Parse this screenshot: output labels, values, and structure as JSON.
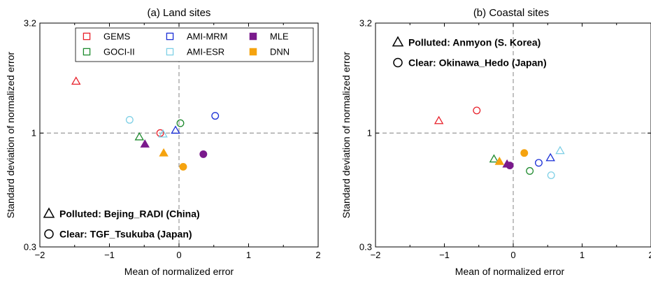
{
  "chart_data": [
    {
      "type": "scatter",
      "title": "(a) Land sites",
      "xlabel": "Mean of normalized error",
      "ylabel": "Standard deviation of normalized error",
      "xlim": [
        -2,
        2
      ],
      "ylim": [
        0.3,
        3.2
      ],
      "yscale": "log",
      "xticks": [
        -2,
        -1,
        0,
        1,
        2
      ],
      "xtick_labels": [
        "−2",
        "−1",
        "0",
        "1",
        "2"
      ],
      "yticks": [
        0.3,
        1,
        3.2
      ],
      "ytick_labels": [
        "0.3",
        "1",
        "3.2"
      ],
      "reference_lines": {
        "x": 0,
        "y": 1,
        "style": "dashed"
      },
      "legend": {
        "placement": "top",
        "entries": [
          {
            "name": "GEMS",
            "color": "#e8202a",
            "marker": "open-square"
          },
          {
            "name": "GOCI-II",
            "color": "#1e8a2e",
            "marker": "open-square"
          },
          {
            "name": "AMI-MRM",
            "color": "#1a2fd6",
            "marker": "open-square"
          },
          {
            "name": "AMI-ESR",
            "color": "#7fd0e6",
            "marker": "open-square"
          },
          {
            "name": "MLE",
            "color": "#7a1a8c",
            "marker": "filled-square"
          },
          {
            "name": "DNN",
            "color": "#f5a30f",
            "marker": "filled-square"
          }
        ]
      },
      "site_annotations": [
        {
          "marker": "triangle",
          "text": "Polluted: Bejing_RADI (China)"
        },
        {
          "marker": "circle",
          "text": "Clear: TGF_Tsukuba (Japan)"
        }
      ],
      "series": [
        {
          "name": "GEMS",
          "color": "#e8202a",
          "filled": false,
          "points": [
            {
              "site": "polluted",
              "x": -1.48,
              "y": 1.73
            },
            {
              "site": "clear",
              "x": -0.27,
              "y": 1.0
            }
          ]
        },
        {
          "name": "GOCI-II",
          "color": "#1e8a2e",
          "filled": false,
          "points": [
            {
              "site": "polluted",
              "x": -0.57,
              "y": 0.96
            },
            {
              "site": "clear",
              "x": 0.02,
              "y": 1.11
            }
          ]
        },
        {
          "name": "AMI-MRM",
          "color": "#1a2fd6",
          "filled": false,
          "points": [
            {
              "site": "polluted",
              "x": -0.05,
              "y": 1.03
            },
            {
              "site": "clear",
              "x": 0.52,
              "y": 1.2
            }
          ]
        },
        {
          "name": "AMI-ESR",
          "color": "#7fd0e6",
          "filled": false,
          "points": [
            {
              "site": "polluted",
              "x": -0.23,
              "y": 0.99
            },
            {
              "site": "clear",
              "x": -0.71,
              "y": 1.15
            }
          ]
        },
        {
          "name": "MLE",
          "color": "#7a1a8c",
          "filled": true,
          "points": [
            {
              "site": "polluted",
              "x": -0.49,
              "y": 0.89
            },
            {
              "site": "clear",
              "x": 0.35,
              "y": 0.8
            }
          ]
        },
        {
          "name": "DNN",
          "color": "#f5a30f",
          "filled": true,
          "points": [
            {
              "site": "polluted",
              "x": -0.22,
              "y": 0.81
            },
            {
              "site": "clear",
              "x": 0.06,
              "y": 0.7
            }
          ]
        }
      ]
    },
    {
      "type": "scatter",
      "title": "(b) Coastal sites",
      "xlabel": "Mean of normalized error",
      "ylabel": "Standard deviation of normalized error",
      "xlim": [
        -2,
        2
      ],
      "ylim": [
        0.3,
        3.2
      ],
      "yscale": "log",
      "xticks": [
        -2,
        -1,
        0,
        1,
        2
      ],
      "xtick_labels": [
        "−2",
        "−1",
        "0",
        "1",
        "2"
      ],
      "yticks": [
        0.3,
        1,
        3.2
      ],
      "ytick_labels": [
        "0.3",
        "1",
        "3.2"
      ],
      "reference_lines": {
        "x": 0,
        "y": 1,
        "style": "dashed"
      },
      "site_annotations": [
        {
          "marker": "triangle",
          "text": "Polluted: Anmyon (S. Korea)"
        },
        {
          "marker": "circle",
          "text": "Clear: Okinawa_Hedo (Japan)"
        }
      ],
      "series": [
        {
          "name": "GEMS",
          "color": "#e8202a",
          "filled": false,
          "points": [
            {
              "site": "polluted",
              "x": -1.08,
              "y": 1.14
            },
            {
              "site": "clear",
              "x": -0.53,
              "y": 1.27
            }
          ]
        },
        {
          "name": "GOCI-II",
          "color": "#1e8a2e",
          "filled": false,
          "points": [
            {
              "site": "polluted",
              "x": -0.28,
              "y": 0.76
            },
            {
              "site": "clear",
              "x": 0.24,
              "y": 0.67
            }
          ]
        },
        {
          "name": "AMI-MRM",
          "color": "#1a2fd6",
          "filled": false,
          "points": [
            {
              "site": "polluted",
              "x": 0.54,
              "y": 0.77
            },
            {
              "site": "clear",
              "x": 0.37,
              "y": 0.73
            }
          ]
        },
        {
          "name": "AMI-ESR",
          "color": "#7fd0e6",
          "filled": false,
          "points": [
            {
              "site": "polluted",
              "x": 0.68,
              "y": 0.83
            },
            {
              "site": "clear",
              "x": 0.55,
              "y": 0.64
            }
          ]
        },
        {
          "name": "MLE",
          "color": "#7a1a8c",
          "filled": true,
          "points": [
            {
              "site": "polluted",
              "x": -0.09,
              "y": 0.72
            },
            {
              "site": "clear",
              "x": -0.05,
              "y": 0.71
            }
          ]
        },
        {
          "name": "DNN",
          "color": "#f5a30f",
          "filled": true,
          "points": [
            {
              "site": "polluted",
              "x": -0.2,
              "y": 0.74
            },
            {
              "site": "clear",
              "x": 0.16,
              "y": 0.81
            }
          ]
        }
      ]
    }
  ]
}
